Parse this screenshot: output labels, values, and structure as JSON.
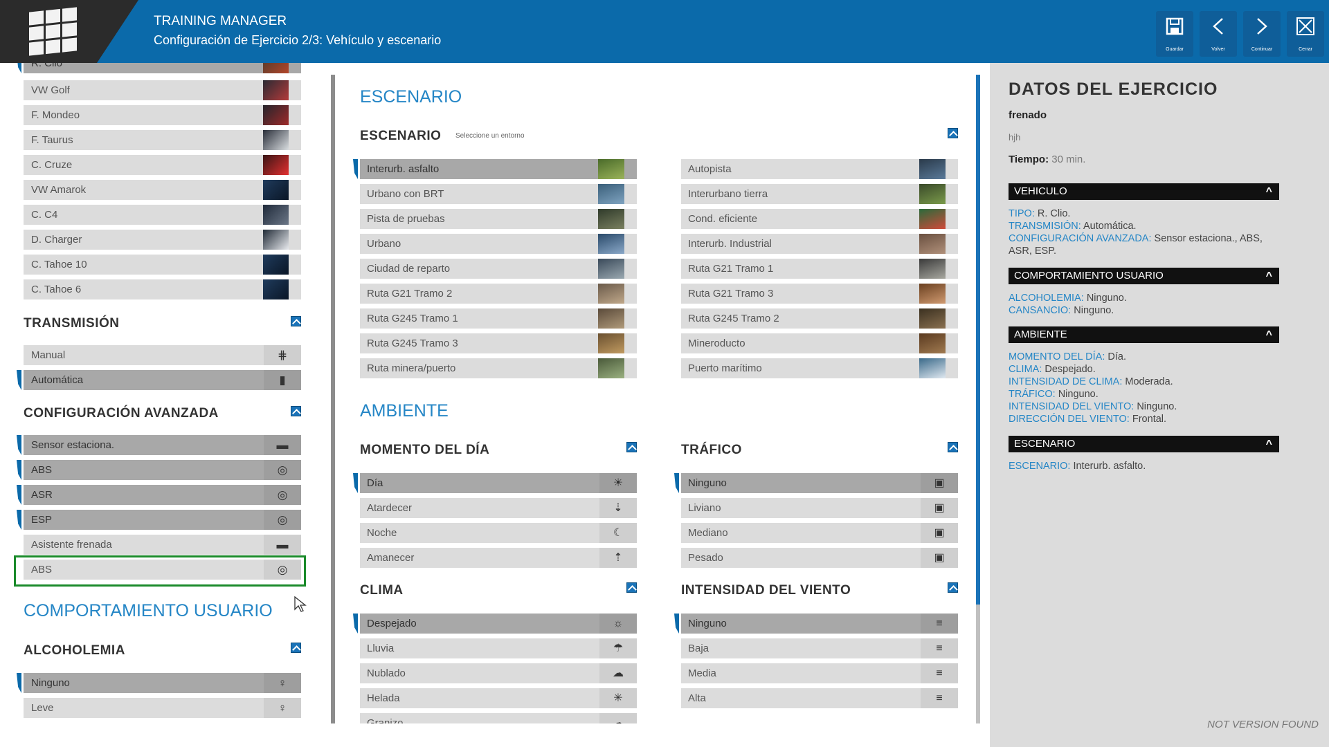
{
  "header": {
    "title": "TRAINING MANAGER",
    "subtitle": "Configuración de Ejercicio 2/3: Vehículo y escenario",
    "buttons": [
      {
        "label": "Guardar",
        "icon": "save-icon"
      },
      {
        "label": "Volver",
        "icon": "chevron-left-icon"
      },
      {
        "label": "Continuar",
        "icon": "chevron-right-icon"
      },
      {
        "label": "Cerrar",
        "icon": "close-icon"
      }
    ]
  },
  "left": {
    "vehicles": [
      "R. Clio",
      "VW Golf",
      "F. Mondeo",
      "F. Taurus",
      "C. Cruze",
      "VW Amarok",
      "C. C4",
      "D. Charger",
      "C. Tahoe 10",
      "C. Tahoe 6"
    ],
    "transmission_title": "TRANSMISIÓN",
    "transmission": [
      "Manual",
      "Automática"
    ],
    "advanced_title": "CONFIGURACIÓN AVANZADA",
    "advanced": [
      "Sensor estaciona.",
      "ABS",
      "ASR",
      "ESP",
      "Asistente frenada",
      "ABS"
    ],
    "behaviour_title": "COMPORTAMIENTO USUARIO",
    "alcohol_title": "ALCOHOLEMIA",
    "alcohol": [
      "Ninguno",
      "Leve"
    ]
  },
  "center": {
    "scenario_heading": "ESCENARIO",
    "scenario_title": "ESCENARIO",
    "scenario_hint": "Seleccione un entorno",
    "scenarios_left": [
      "Interurb. asfalto",
      "Urbano con BRT",
      "Pista de pruebas",
      "Urbano",
      "Ciudad de reparto",
      "Ruta G21 Tramo 2",
      "Ruta G245 Tramo 1",
      "Ruta G245 Tramo 3",
      "Ruta minera/puerto"
    ],
    "scenarios_right": [
      "Autopista",
      "Interurbano tierra",
      "Cond. eficiente",
      "Interurb. Industrial",
      "Ruta G21 Tramo 1",
      "Ruta G21 Tramo 3",
      "Ruta G245 Tramo 2",
      "Mineroducto",
      "Puerto marítimo"
    ],
    "env_heading": "AMBIENTE",
    "time_title": "MOMENTO DEL DÍA",
    "time": [
      "Día",
      "Atardecer",
      "Noche",
      "Amanecer"
    ],
    "traffic_title": "TRÁFICO",
    "traffic": [
      "Ninguno",
      "Liviano",
      "Mediano",
      "Pesado"
    ],
    "weather_title": "CLIMA",
    "weather": [
      "Despejado",
      "Lluvia",
      "Nublado",
      "Helada",
      "Granizo"
    ],
    "wind_title": "INTENSIDAD DEL VIENTO",
    "wind": [
      "Ninguno",
      "Baja",
      "Media",
      "Alta"
    ]
  },
  "summary": {
    "title": "DATOS DEL EJERCICIO",
    "name": "frenado",
    "desc": "hjh",
    "time_label": "Tiempo:",
    "time_value": "30 min.",
    "vehicle_section": "VEHICULO",
    "vehicle": [
      {
        "k": "TIPO:",
        "v": "R. Clio."
      },
      {
        "k": "TRANSMISIÓN:",
        "v": "Automática."
      },
      {
        "k": "CONFIGURACIÓN AVANZADA:",
        "v": "Sensor estaciona., ABS, ASR, ESP."
      }
    ],
    "behaviour_section": "COMPORTAMIENTO USUARIO",
    "behaviour": [
      {
        "k": "ALCOHOLEMIA:",
        "v": "Ninguno."
      },
      {
        "k": "CANSANCIO:",
        "v": "Ninguno."
      }
    ],
    "env_section": "AMBIENTE",
    "env": [
      {
        "k": "MOMENTO DEL DÍA:",
        "v": "Día."
      },
      {
        "k": "CLIMA:",
        "v": "Despejado."
      },
      {
        "k": "INTENSIDAD DE CLIMA:",
        "v": "Moderada."
      },
      {
        "k": "TRÁFICO:",
        "v": "Ninguno."
      },
      {
        "k": "INTENSIDAD DEL VIENTO:",
        "v": "Ninguno."
      },
      {
        "k": "DIRECCIÓN DEL VIENTO:",
        "v": "Frontal."
      }
    ],
    "scenario_section": "ESCENARIO",
    "scenario": [
      {
        "k": "ESCENARIO:",
        "v": "Interurb. asfalto."
      }
    ],
    "footer": "NOT VERSION FOUND"
  }
}
